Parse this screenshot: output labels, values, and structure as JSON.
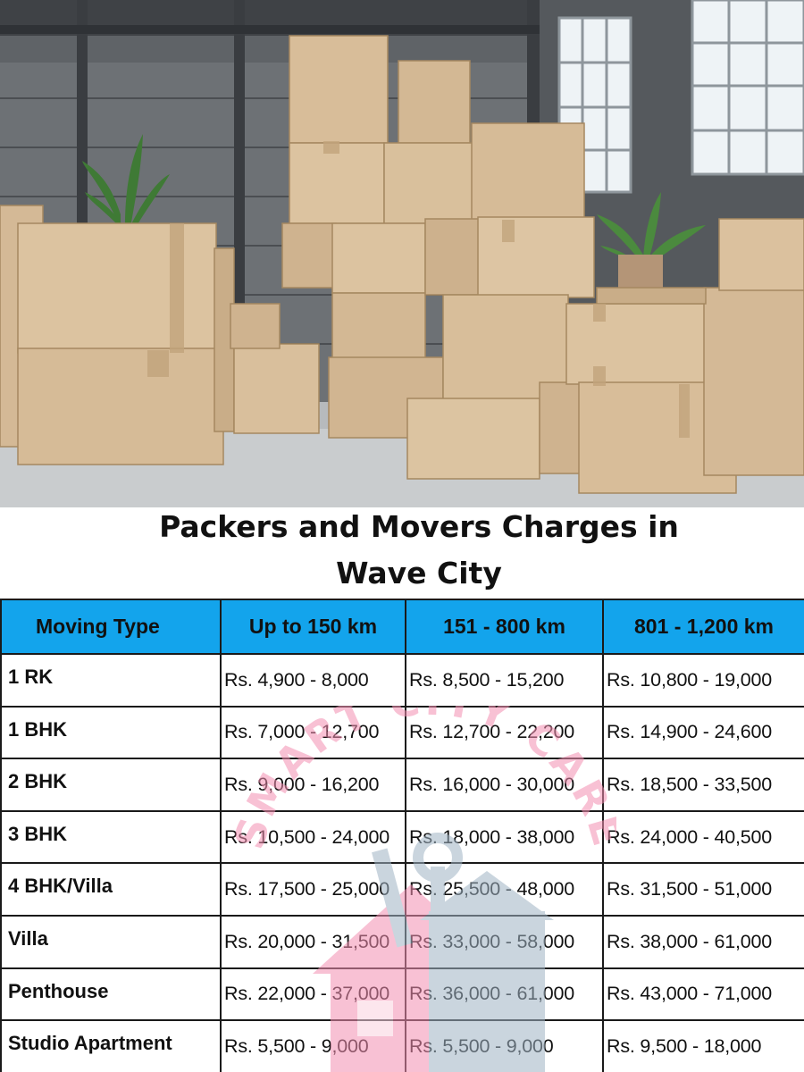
{
  "title": {
    "line1": "Packers and Movers Charges in",
    "line2": "Wave City"
  },
  "table": {
    "headers": [
      "Moving Type",
      "Up to 150 km",
      "151 - 800 km",
      "801 - 1,200 km"
    ],
    "rows": [
      {
        "type": "1 RK",
        "short": "Rs. 4,900 - 8,000",
        "mid": "Rs. 8,500 - 15,200",
        "long": "Rs. 10,800 - 19,000"
      },
      {
        "type": "1 BHK",
        "short": "Rs. 7,000 - 12,700",
        "mid": "Rs. 12,700 - 22,200",
        "long": "Rs. 14,900 - 24,600"
      },
      {
        "type": "2 BHK",
        "short": "Rs. 9,000 - 16,200",
        "mid": "Rs. 16,000 - 30,000",
        "long": "Rs. 18,500 - 33,500"
      },
      {
        "type": "3 BHK",
        "short": "Rs. 10,500 - 24,000",
        "mid": "Rs. 18,000 - 38,000",
        "long": "Rs. 24,000 - 40,500"
      },
      {
        "type": "4 BHK/Villa",
        "short": "Rs. 17,500 - 25,000",
        "mid": "Rs. 25,500 - 48,000",
        "long": "Rs. 31,500 - 51,000"
      },
      {
        "type": "Villa",
        "short": "Rs. 20,000 - 31,500",
        "mid": "Rs. 33,000 - 58,000",
        "long": "Rs. 38,000 - 61,000"
      },
      {
        "type": "Penthouse",
        "short": "Rs. 22,000 - 37,000",
        "mid": "Rs. 36,000 - 61,000",
        "long": "Rs. 43,000 - 71,000"
      },
      {
        "type": "Studio Apartment",
        "short": "Rs. 5,500 - 9,000",
        "mid": "Rs. 5,500 - 9,000",
        "long": "Rs. 9,500 - 18,000"
      }
    ]
  },
  "watermark": {
    "text": "SMART CITY CARE",
    "color": "#f48fb1"
  },
  "colors": {
    "header_bg": "#13a4ec",
    "border": "#1a1a1a"
  }
}
